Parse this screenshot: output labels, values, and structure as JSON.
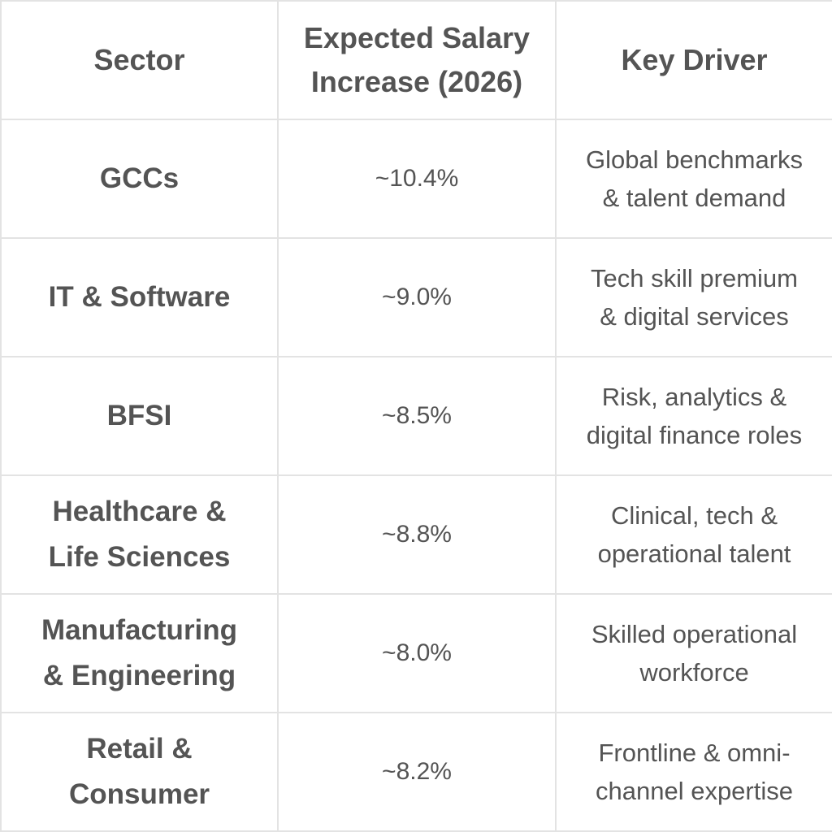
{
  "table": {
    "headers": {
      "sector": [
        "Sector"
      ],
      "salary": [
        "Expected Salary",
        "Increase (2026)"
      ],
      "driver": [
        "Key Driver"
      ]
    },
    "rows": [
      {
        "sector": [
          "GCCs"
        ],
        "salary": "~10.4%",
        "driver": [
          "Global benchmarks",
          "& talent demand"
        ]
      },
      {
        "sector": [
          "IT & Software"
        ],
        "salary": "~9.0%",
        "driver": [
          "Tech skill premium",
          "& digital services"
        ]
      },
      {
        "sector": [
          "BFSI"
        ],
        "salary": "~8.5%",
        "driver": [
          "Risk, analytics &",
          "digital finance roles"
        ]
      },
      {
        "sector": [
          "Healthcare &",
          "Life Sciences"
        ],
        "salary": "~8.8%",
        "driver": [
          "Clinical, tech &",
          "operational talent"
        ]
      },
      {
        "sector": [
          "Manufacturing",
          "& Engineering"
        ],
        "salary": "~8.0%",
        "driver": [
          "Skilled operational",
          "workforce"
        ]
      },
      {
        "sector": [
          "Retail &",
          "Consumer"
        ],
        "salary": "~8.2%",
        "driver": [
          "Frontline & omni-",
          "channel expertise"
        ]
      }
    ]
  },
  "colors": {
    "text": "#545454",
    "border": "#e3e3e3",
    "background": "#ffffff"
  }
}
